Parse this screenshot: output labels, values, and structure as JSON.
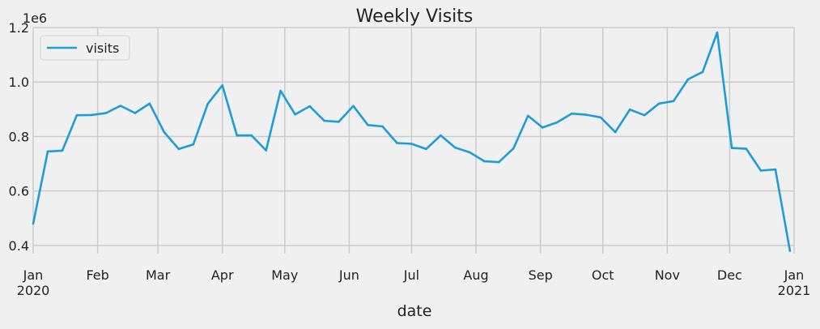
{
  "chart_data": {
    "type": "line",
    "title": "Weekly Visits",
    "xlabel": "date",
    "ylabel": "",
    "y_offset_label": "1e6",
    "ylim": [
      0.37,
      1.2
    ],
    "y_ticks": [
      0.4,
      0.6,
      0.8,
      1.0,
      1.2
    ],
    "y_tick_labels": [
      "0.4",
      "0.6",
      "0.8",
      "1.0",
      "1.2"
    ],
    "x_range": [
      "2020-01-01",
      "2021-01-01"
    ],
    "x_ticks": [
      {
        "date": "2020-01-01",
        "label": "Jan",
        "sublabel": "2020"
      },
      {
        "date": "2020-02-01",
        "label": "Feb",
        "sublabel": ""
      },
      {
        "date": "2020-03-01",
        "label": "Mar",
        "sublabel": ""
      },
      {
        "date": "2020-04-01",
        "label": "Apr",
        "sublabel": ""
      },
      {
        "date": "2020-05-01",
        "label": "May",
        "sublabel": ""
      },
      {
        "date": "2020-06-01",
        "label": "Jun",
        "sublabel": ""
      },
      {
        "date": "2020-07-01",
        "label": "Jul",
        "sublabel": ""
      },
      {
        "date": "2020-08-01",
        "label": "Aug",
        "sublabel": ""
      },
      {
        "date": "2020-09-01",
        "label": "Sep",
        "sublabel": ""
      },
      {
        "date": "2020-10-01",
        "label": "Oct",
        "sublabel": ""
      },
      {
        "date": "2020-11-01",
        "label": "Nov",
        "sublabel": ""
      },
      {
        "date": "2020-12-01",
        "label": "Dec",
        "sublabel": ""
      },
      {
        "date": "2021-01-01",
        "label": "Jan",
        "sublabel": "2021"
      }
    ],
    "grid": true,
    "legend_position": "top-left",
    "series": [
      {
        "name": "visits",
        "color": "#1f9bd8",
        "x": [
          "2020-01-01",
          "2020-01-08",
          "2020-01-15",
          "2020-01-22",
          "2020-01-29",
          "2020-02-05",
          "2020-02-12",
          "2020-02-19",
          "2020-02-26",
          "2020-03-04",
          "2020-03-11",
          "2020-03-18",
          "2020-03-25",
          "2020-04-01",
          "2020-04-08",
          "2020-04-15",
          "2020-04-22",
          "2020-04-29",
          "2020-05-06",
          "2020-05-13",
          "2020-05-20",
          "2020-05-27",
          "2020-06-03",
          "2020-06-10",
          "2020-06-17",
          "2020-06-24",
          "2020-07-01",
          "2020-07-08",
          "2020-07-15",
          "2020-07-22",
          "2020-07-29",
          "2020-08-05",
          "2020-08-12",
          "2020-08-19",
          "2020-08-26",
          "2020-09-02",
          "2020-09-09",
          "2020-09-16",
          "2020-09-23",
          "2020-09-30",
          "2020-10-07",
          "2020-10-14",
          "2020-10-21",
          "2020-10-28",
          "2020-11-04",
          "2020-11-11",
          "2020-11-18",
          "2020-11-25",
          "2020-12-02",
          "2020-12-09",
          "2020-12-16",
          "2020-12-23",
          "2020-12-30"
        ],
        "values": [
          0.48,
          0.745,
          0.748,
          0.878,
          0.879,
          0.886,
          0.913,
          0.886,
          0.921,
          0.816,
          0.754,
          0.771,
          0.92,
          0.988,
          0.804,
          0.804,
          0.749,
          0.968,
          0.881,
          0.911,
          0.858,
          0.854,
          0.912,
          0.842,
          0.837,
          0.776,
          0.773,
          0.754,
          0.804,
          0.759,
          0.742,
          0.709,
          0.706,
          0.756,
          0.876,
          0.833,
          0.852,
          0.884,
          0.88,
          0.87,
          0.816,
          0.899,
          0.878,
          0.921,
          0.93,
          1.01,
          1.037,
          1.182,
          0.758,
          0.755,
          0.675,
          0.679,
          0.38
        ]
      }
    ]
  }
}
